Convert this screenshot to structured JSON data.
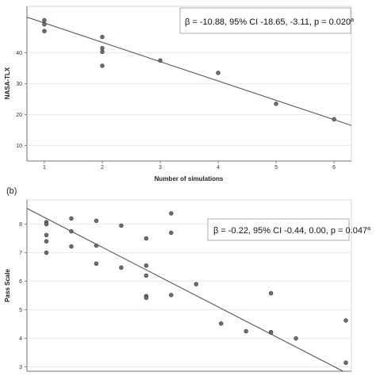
{
  "chart_data": [
    {
      "type": "scatter",
      "panel_label": "",
      "xlabel": "Number of simulations",
      "ylabel": "NASA-TLX",
      "x_ticks": [
        1,
        2,
        3,
        4,
        5,
        6
      ],
      "y_ticks": [
        10,
        20,
        30,
        40
      ],
      "xlim": [
        0.7,
        6.3
      ],
      "ylim": [
        5,
        55
      ],
      "annotation": "β = -10.88, 95% CI -18.65, -3.11, p = 0.020",
      "annotation_sup": "a",
      "regression_line": {
        "x": [
          0.7,
          6.3
        ],
        "y": [
          51.5,
          16.5
        ]
      },
      "points": [
        {
          "x": 1,
          "y": 50.5
        },
        {
          "x": 1,
          "y": 49.2
        },
        {
          "x": 1,
          "y": 47.0
        },
        {
          "x": 2,
          "y": 45.1
        },
        {
          "x": 2,
          "y": 41.5
        },
        {
          "x": 2,
          "y": 40.3
        },
        {
          "x": 2,
          "y": 35.8
        },
        {
          "x": 3,
          "y": 37.5
        },
        {
          "x": 4,
          "y": 33.5
        },
        {
          "x": 5,
          "y": 23.5
        },
        {
          "x": 6,
          "y": 18.5
        }
      ]
    },
    {
      "type": "scatter",
      "panel_label": "(b)",
      "xlabel": "",
      "ylabel": "Pass Scale",
      "x_ticks": [],
      "y_ticks": [
        3,
        4,
        5,
        6,
        7,
        8
      ],
      "xlim": [
        0.55,
        6.4
      ],
      "ylim": [
        2.85,
        8.85
      ],
      "annotation": "β = -0.22, 95% CI -0.44, 0.00, p = 0.047",
      "annotation_sup": "a",
      "regression_line": {
        "x": [
          0.55,
          6.4
        ],
        "y": [
          8.55,
          2.7
        ]
      },
      "points": [
        {
          "x": 0.9,
          "y": 8.07
        },
        {
          "x": 0.9,
          "y": 8.0
        },
        {
          "x": 0.9,
          "y": 7.62
        },
        {
          "x": 0.9,
          "y": 7.4
        },
        {
          "x": 0.9,
          "y": 7.0
        },
        {
          "x": 1.35,
          "y": 8.2
        },
        {
          "x": 1.35,
          "y": 7.75
        },
        {
          "x": 1.35,
          "y": 7.22
        },
        {
          "x": 1.8,
          "y": 8.12
        },
        {
          "x": 1.8,
          "y": 7.25
        },
        {
          "x": 1.8,
          "y": 6.62
        },
        {
          "x": 2.25,
          "y": 7.95
        },
        {
          "x": 2.25,
          "y": 6.48
        },
        {
          "x": 2.7,
          "y": 7.5
        },
        {
          "x": 2.7,
          "y": 6.55
        },
        {
          "x": 2.7,
          "y": 6.2
        },
        {
          "x": 2.7,
          "y": 5.48
        },
        {
          "x": 2.7,
          "y": 5.42
        },
        {
          "x": 3.15,
          "y": 8.38
        },
        {
          "x": 3.15,
          "y": 7.7
        },
        {
          "x": 3.15,
          "y": 5.52
        },
        {
          "x": 3.6,
          "y": 5.9
        },
        {
          "x": 4.05,
          "y": 4.52
        },
        {
          "x": 4.5,
          "y": 4.25
        },
        {
          "x": 4.95,
          "y": 5.58
        },
        {
          "x": 4.95,
          "y": 4.22
        },
        {
          "x": 4.95,
          "y": 4.2
        },
        {
          "x": 5.4,
          "y": 4.0
        },
        {
          "x": 6.3,
          "y": 4.63
        },
        {
          "x": 6.3,
          "y": 3.15
        }
      ]
    }
  ]
}
